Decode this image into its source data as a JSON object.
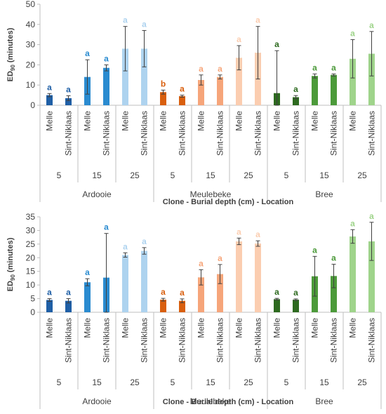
{
  "chart_data": [
    {
      "type": "bar",
      "ylabel": "ED90 (minutes)",
      "xlabel": "Clone - Burial depth (cm) - Location",
      "ylim": [
        0,
        50
      ],
      "yticks": [
        0,
        10,
        20,
        30,
        40,
        50
      ],
      "grid": false,
      "locations": [
        "Ardooie",
        "Meulebeke",
        "Bree"
      ],
      "depths": [
        "5",
        "15",
        "25"
      ],
      "clones": [
        "Melle",
        "Sint-Niklaas"
      ],
      "bars": [
        {
          "location": "Ardooie",
          "depth": "5",
          "clone": "Melle",
          "value": 5.0,
          "err": 0.8,
          "letter": "a",
          "color": "#1f5fa6"
        },
        {
          "location": "Ardooie",
          "depth": "5",
          "clone": "Sint-Niklaas",
          "value": 3.5,
          "err": 1.2,
          "letter": "a",
          "color": "#1f5fa6"
        },
        {
          "location": "Ardooie",
          "depth": "15",
          "clone": "Melle",
          "value": 14.0,
          "err": 8.5,
          "letter": "a",
          "color": "#2a8bd0"
        },
        {
          "location": "Ardooie",
          "depth": "15",
          "clone": "Sint-Niklaas",
          "value": 18.5,
          "err": 1.5,
          "letter": "a",
          "color": "#2a8bd0"
        },
        {
          "location": "Ardooie",
          "depth": "25",
          "clone": "Melle",
          "value": 28.0,
          "err": 11.0,
          "letter": "a",
          "color": "#aed3ef"
        },
        {
          "location": "Ardooie",
          "depth": "25",
          "clone": "Sint-Niklaas",
          "value": 28.0,
          "err": 9.0,
          "letter": "a",
          "color": "#aed3ef"
        },
        {
          "location": "Meulebeke",
          "depth": "5",
          "clone": "Melle",
          "value": 6.5,
          "err": 1.0,
          "letter": "b",
          "color": "#d95f0e"
        },
        {
          "location": "Meulebeke",
          "depth": "5",
          "clone": "Sint-Niklaas",
          "value": 4.5,
          "err": 0.5,
          "letter": "a",
          "color": "#d95f0e"
        },
        {
          "location": "Meulebeke",
          "depth": "15",
          "clone": "Melle",
          "value": 12.5,
          "err": 2.5,
          "letter": "a",
          "color": "#f6a57a"
        },
        {
          "location": "Meulebeke",
          "depth": "15",
          "clone": "Sint-Niklaas",
          "value": 14.0,
          "err": 1.0,
          "letter": "a",
          "color": "#f6a57a"
        },
        {
          "location": "Meulebeke",
          "depth": "25",
          "clone": "Melle",
          "value": 23.5,
          "err": 6.0,
          "letter": "a",
          "color": "#fbcdb0"
        },
        {
          "location": "Meulebeke",
          "depth": "25",
          "clone": "Sint-Niklaas",
          "value": 26.0,
          "err": 13.0,
          "letter": "a",
          "color": "#fbcdb0"
        },
        {
          "location": "Bree",
          "depth": "5",
          "clone": "Melle",
          "value": 6.0,
          "err": 21.0,
          "letter": "a",
          "color": "#2d6a1f"
        },
        {
          "location": "Bree",
          "depth": "5",
          "clone": "Sint-Niklaas",
          "value": 4.0,
          "err": 0.8,
          "letter": "a",
          "color": "#2d6a1f"
        },
        {
          "location": "Bree",
          "depth": "15",
          "clone": "Melle",
          "value": 14.5,
          "err": 1.0,
          "letter": "a",
          "color": "#4c9a3a"
        },
        {
          "location": "Bree",
          "depth": "15",
          "clone": "Sint-Niklaas",
          "value": 15.0,
          "err": 0.5,
          "letter": "a",
          "color": "#4c9a3a"
        },
        {
          "location": "Bree",
          "depth": "25",
          "clone": "Melle",
          "value": 23.0,
          "err": 9.5,
          "letter": "a",
          "color": "#9fd48b"
        },
        {
          "location": "Bree",
          "depth": "25",
          "clone": "Sint-Niklaas",
          "value": 25.5,
          "err": 11.0,
          "letter": "a",
          "color": "#9fd48b"
        }
      ]
    },
    {
      "type": "bar",
      "ylabel": "ED90 (minutes)",
      "xlabel": "Clone - Burial depth (cm) - Location",
      "ylim": [
        0,
        35
      ],
      "yticks": [
        0,
        5,
        10,
        15,
        20,
        25,
        30,
        35
      ],
      "grid": false,
      "locations": [
        "Ardooie",
        "Meulebeke",
        "Bree"
      ],
      "depths": [
        "5",
        "15",
        "25"
      ],
      "clones": [
        "Melle",
        "Sint-Niklaas"
      ],
      "bars": [
        {
          "location": "Ardooie",
          "depth": "5",
          "clone": "Melle",
          "value": 4.5,
          "err": 0.5,
          "letter": "a",
          "color": "#1f5fa6"
        },
        {
          "location": "Ardooie",
          "depth": "5",
          "clone": "Sint-Niklaas",
          "value": 4.2,
          "err": 0.8,
          "letter": "a",
          "color": "#1f5fa6"
        },
        {
          "location": "Ardooie",
          "depth": "15",
          "clone": "Melle",
          "value": 11.0,
          "err": 1.3,
          "letter": "a",
          "color": "#2a8bd0"
        },
        {
          "location": "Ardooie",
          "depth": "15",
          "clone": "Sint-Niklaas",
          "value": 12.7,
          "err": 16.2,
          "letter": "a",
          "color": "#2a8bd0"
        },
        {
          "location": "Ardooie",
          "depth": "25",
          "clone": "Melle",
          "value": 21.0,
          "err": 0.8,
          "letter": "a",
          "color": "#aed3ef"
        },
        {
          "location": "Ardooie",
          "depth": "25",
          "clone": "Sint-Niklaas",
          "value": 22.5,
          "err": 1.2,
          "letter": "a",
          "color": "#aed3ef"
        },
        {
          "location": "Meulebeke",
          "depth": "5",
          "clone": "Melle",
          "value": 4.6,
          "err": 0.5,
          "letter": "a",
          "color": "#d95f0e"
        },
        {
          "location": "Meulebeke",
          "depth": "5",
          "clone": "Sint-Niklaas",
          "value": 4.2,
          "err": 0.7,
          "letter": "a",
          "color": "#d95f0e"
        },
        {
          "location": "Meulebeke",
          "depth": "15",
          "clone": "Melle",
          "value": 12.8,
          "err": 2.8,
          "letter": "a",
          "color": "#f6a57a"
        },
        {
          "location": "Meulebeke",
          "depth": "15",
          "clone": "Sint-Niklaas",
          "value": 14.0,
          "err": 3.5,
          "letter": "a",
          "color": "#f6a57a"
        },
        {
          "location": "Meulebeke",
          "depth": "25",
          "clone": "Melle",
          "value": 26.0,
          "err": 1.2,
          "letter": "a",
          "color": "#fbcdb0"
        },
        {
          "location": "Meulebeke",
          "depth": "25",
          "clone": "Sint-Niklaas",
          "value": 25.2,
          "err": 1.0,
          "letter": "a",
          "color": "#fbcdb0"
        },
        {
          "location": "Bree",
          "depth": "5",
          "clone": "Melle",
          "value": 4.8,
          "err": 0.3,
          "letter": "a",
          "color": "#2d6a1f"
        },
        {
          "location": "Bree",
          "depth": "5",
          "clone": "Sint-Niklaas",
          "value": 4.6,
          "err": 0.3,
          "letter": "a",
          "color": "#2d6a1f"
        },
        {
          "location": "Bree",
          "depth": "15",
          "clone": "Melle",
          "value": 13.2,
          "err": 7.3,
          "letter": "a",
          "color": "#4c9a3a"
        },
        {
          "location": "Bree",
          "depth": "15",
          "clone": "Sint-Niklaas",
          "value": 13.3,
          "err": 4.3,
          "letter": "a",
          "color": "#4c9a3a"
        },
        {
          "location": "Bree",
          "depth": "25",
          "clone": "Melle",
          "value": 27.8,
          "err": 2.5,
          "letter": "a",
          "color": "#9fd48b"
        },
        {
          "location": "Bree",
          "depth": "25",
          "clone": "Sint-Niklaas",
          "value": 26.0,
          "err": 7.0,
          "letter": "a",
          "color": "#9fd48b"
        }
      ]
    }
  ]
}
